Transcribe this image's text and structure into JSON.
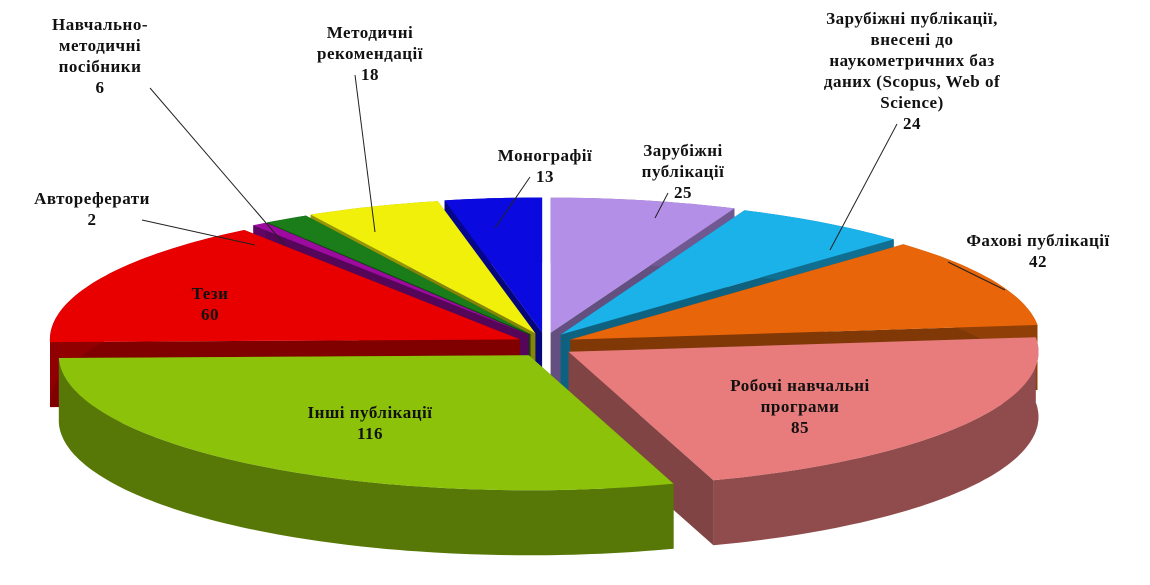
{
  "chart_data": {
    "type": "pie3d",
    "categories": [
      "Зарубіжні публікації",
      "Зарубіжні публікації, внесені до наукометричних баз даних (Scopus, Web of Science)",
      "Фахові публікації",
      "Робочі навчальні програми",
      "Інші публікації",
      "Тези",
      "Автореферати",
      "Навчально-методичні посібники",
      "Методичні рекомендації",
      "Монографії"
    ],
    "values": [
      25,
      24,
      42,
      85,
      116,
      60,
      2,
      6,
      18,
      13
    ],
    "colors": [
      "#b48fe8",
      "#1ab2e8",
      "#e8650a",
      "#e87b7b",
      "#8cc20a",
      "#e80000",
      "#9c0aa0",
      "#1a7d1a",
      "#f0f00a",
      "#0a0ae0"
    ]
  }
}
